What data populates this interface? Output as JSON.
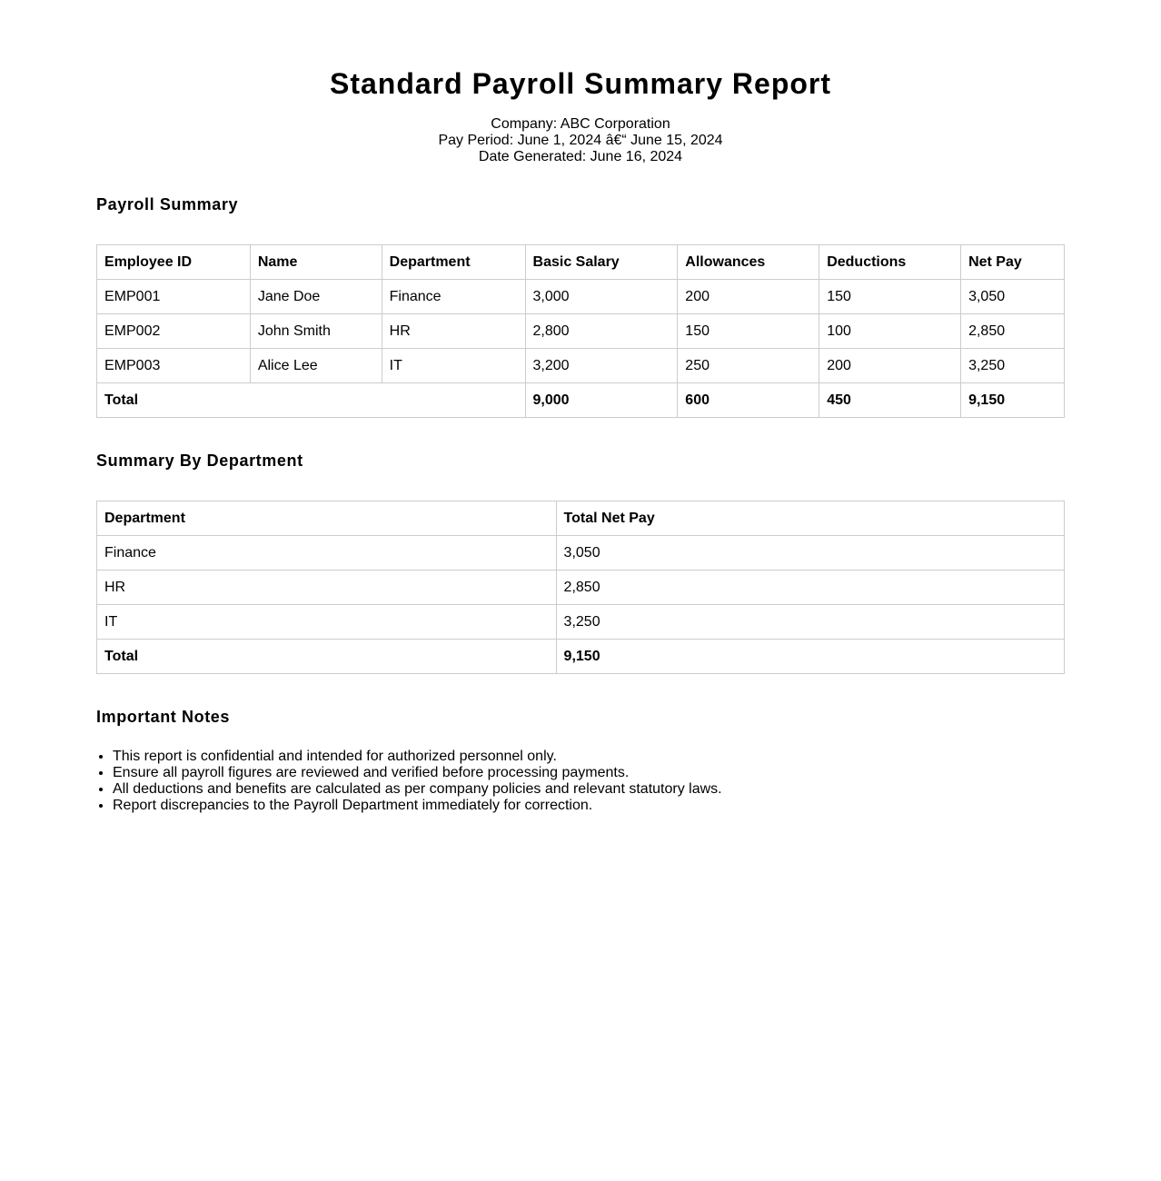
{
  "title": "Standard Payroll Summary Report",
  "info": {
    "company": "Company: ABC Corporation",
    "pay_period": "Pay Period: June 1, 2024 â€“ June 15, 2024",
    "date_generated": "Date Generated: June 16, 2024"
  },
  "payroll": {
    "heading": "Payroll Summary",
    "headers": [
      "Employee ID",
      "Name",
      "Department",
      "Basic Salary",
      "Allowances",
      "Deductions",
      "Net Pay"
    ],
    "rows": [
      [
        "EMP001",
        "Jane Doe",
        "Finance",
        "3,000",
        "200",
        "150",
        "3,050"
      ],
      [
        "EMP002",
        "John Smith",
        "HR",
        "2,800",
        "150",
        "100",
        "2,850"
      ],
      [
        "EMP003",
        "Alice Lee",
        "IT",
        "3,200",
        "250",
        "200",
        "3,250"
      ]
    ],
    "total": {
      "label": "Total",
      "basic": "9,000",
      "allowances": "600",
      "deductions": "450",
      "net": "9,150"
    }
  },
  "department": {
    "heading": "Summary By Department",
    "headers": [
      "Department",
      "Total Net Pay"
    ],
    "rows": [
      [
        "Finance",
        "3,050"
      ],
      [
        "HR",
        "2,850"
      ],
      [
        "IT",
        "3,250"
      ]
    ],
    "total": {
      "label": "Total",
      "net": "9,150"
    }
  },
  "notes": {
    "heading": "Important Notes",
    "items": [
      "This report is confidential and intended for authorized personnel only.",
      "Ensure all payroll figures are reviewed and verified before processing payments.",
      "All deductions and benefits are calculated as per company policies and relevant statutory laws.",
      "Report discrepancies to the Payroll Department immediately for correction."
    ]
  }
}
